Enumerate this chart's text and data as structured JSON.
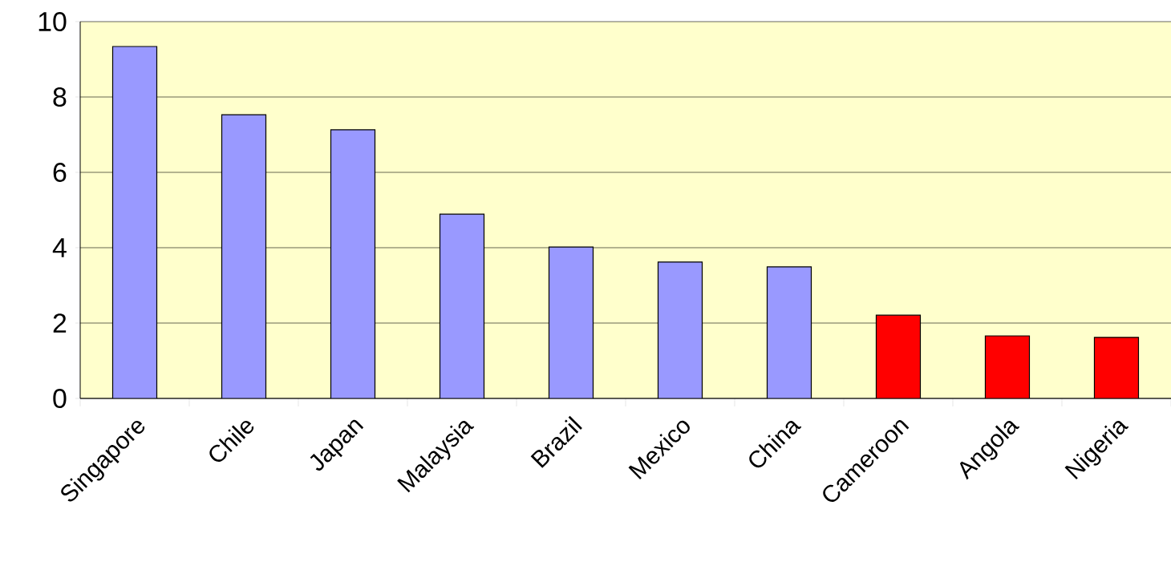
{
  "chart_data": {
    "type": "bar",
    "categories": [
      "Singapore",
      "Chile",
      "Japan",
      "Malaysia",
      "Brazil",
      "Mexico",
      "China",
      "Cameroon",
      "Angola",
      "Nigeria"
    ],
    "values": [
      9.34,
      7.53,
      7.13,
      4.89,
      4.02,
      3.62,
      3.49,
      2.21,
      1.66,
      1.62
    ],
    "colors": [
      "#9999ff",
      "#9999ff",
      "#9999ff",
      "#9999ff",
      "#9999ff",
      "#9999ff",
      "#9999ff",
      "#ff0000",
      "#ff0000",
      "#ff0000"
    ],
    "ylim": [
      0,
      10
    ],
    "yticks": [
      0,
      2,
      4,
      6,
      8,
      10
    ],
    "grid": "y"
  }
}
